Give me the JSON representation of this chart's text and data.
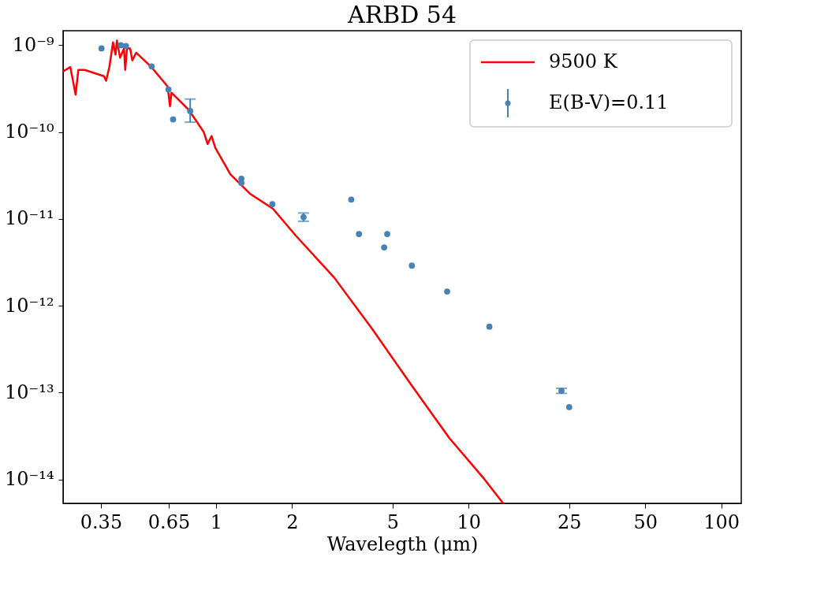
{
  "chart_data": {
    "type": "scatter",
    "title": "ARBD 54",
    "xlabel": "Wavelegth  (μm)",
    "log": "xy",
    "grid": false,
    "legend": "top right",
    "xlim": [
      0.248,
      120
    ],
    "ylim": [
      5.3e-15,
      1.47e-09
    ],
    "xticks": [
      0.35,
      0.65,
      1,
      2,
      5,
      10,
      25,
      50,
      100
    ],
    "yticks": [
      {
        "value": 1e-09,
        "label": "10⁻⁹"
      },
      {
        "value": 1e-10,
        "label": "10⁻¹⁰"
      },
      {
        "value": 1e-11,
        "label": "10⁻¹¹"
      },
      {
        "value": 1e-12,
        "label": "10⁻¹²"
      },
      {
        "value": 1e-13,
        "label": "10⁻¹³"
      },
      {
        "value": 1e-14,
        "label": "10⁻¹⁴"
      }
    ],
    "series": [
      {
        "name": "9500 K",
        "type": "line",
        "color": "#ff0000",
        "line_style": "solid",
        "x": [
          0.248,
          0.265,
          0.278,
          0.285,
          0.302,
          0.36,
          0.367,
          0.378,
          0.391,
          0.4,
          0.405,
          0.417,
          0.432,
          0.437,
          0.444,
          0.457,
          0.466,
          0.483,
          0.555,
          0.643,
          0.657,
          0.666,
          0.777,
          0.834,
          0.894,
          0.926,
          0.96,
          0.993,
          1.14,
          1.36,
          1.68,
          2.07,
          2.94,
          4.17,
          5.91,
          8.38,
          11.5,
          13.7
        ],
        "values": [
          5e-10,
          5.6e-10,
          2.7e-10,
          5.2e-10,
          5.2e-10,
          4.4e-10,
          3.9e-10,
          5.6e-10,
          1.08e-09,
          7.8e-10,
          1.13e-09,
          7.2e-10,
          9.2e-10,
          5.2e-10,
          9.2e-10,
          9.2e-10,
          6.7e-10,
          8.2e-10,
          5.6e-10,
          3.35e-10,
          1.98e-10,
          2.84e-10,
          1.82e-10,
          1.35e-10,
          1e-10,
          7.3e-11,
          9e-11,
          6.6e-11,
          3.25e-11,
          1.96e-11,
          1.31e-11,
          6.4e-12,
          2.1e-12,
          5.3e-13,
          1.24e-13,
          3e-14,
          1.02e-14,
          5.3e-15
        ]
      },
      {
        "name": "E(B-V)=0.11",
        "color": "#4682b4",
        "marker": "circle",
        "x": [
          0.352,
          0.42,
          0.44,
          0.556,
          0.648,
          0.676,
          0.79,
          1.26,
          1.26,
          1.67,
          2.22,
          3.43,
          3.68,
          4.63,
          4.76,
          5.96,
          8.22,
          12.08,
          23.3,
          25.0
        ],
        "values": [
          9.2e-10,
          1e-09,
          9.8e-10,
          5.7e-10,
          3.1e-10,
          1.4e-10,
          1.75e-10,
          2.9e-11,
          2.6e-11,
          1.48e-11,
          1.05e-11,
          1.67e-11,
          6.7e-12,
          4.7e-12,
          6.7e-12,
          2.9e-12,
          1.46e-12,
          5.75e-13,
          1.05e-13,
          6.8e-14
        ],
        "errors": [
          null,
          null,
          null,
          null,
          null,
          null,
          [
            1.3e-10,
            2.4e-10
          ],
          null,
          null,
          null,
          [
            9.4e-12,
            1.17e-11
          ],
          null,
          null,
          null,
          null,
          null,
          null,
          null,
          [
            9.8e-14,
            1.12e-13
          ],
          null
        ]
      }
    ]
  }
}
